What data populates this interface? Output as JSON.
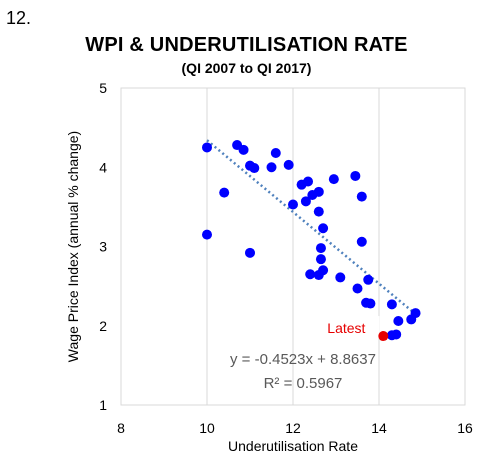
{
  "page": {
    "figure_number": "12."
  },
  "chart_data": {
    "type": "scatter",
    "title": "WPI & UNDERUTILISATION RATE",
    "subtitle": "(QI 2007 to QI 2017)",
    "xlabel": "Underutilisation Rate",
    "ylabel": "Wage Price Index (annual % change)",
    "xlim": [
      8,
      16
    ],
    "ylim": [
      1,
      5
    ],
    "xticks": [
      "8",
      "10",
      "12",
      "14",
      "16"
    ],
    "yticks": [
      "1",
      "2",
      "3",
      "4",
      "5"
    ],
    "grid": "vertical",
    "colors": {
      "points": "#0000ff",
      "latest": "#e60000",
      "trend": "#4f81bd",
      "grid": "#d9d9d9"
    },
    "points": [
      {
        "x": 10.0,
        "y": 4.25
      },
      {
        "x": 10.0,
        "y": 3.15
      },
      {
        "x": 10.4,
        "y": 3.68
      },
      {
        "x": 10.7,
        "y": 4.28
      },
      {
        "x": 10.85,
        "y": 4.22
      },
      {
        "x": 11.0,
        "y": 4.02
      },
      {
        "x": 11.1,
        "y": 3.99
      },
      {
        "x": 11.0,
        "y": 2.92
      },
      {
        "x": 11.5,
        "y": 4.0
      },
      {
        "x": 11.6,
        "y": 4.18
      },
      {
        "x": 11.9,
        "y": 4.03
      },
      {
        "x": 12.0,
        "y": 3.53
      },
      {
        "x": 12.2,
        "y": 3.78
      },
      {
        "x": 12.3,
        "y": 3.57
      },
      {
        "x": 12.35,
        "y": 3.82
      },
      {
        "x": 12.45,
        "y": 3.65
      },
      {
        "x": 12.6,
        "y": 3.69
      },
      {
        "x": 12.6,
        "y": 3.44
      },
      {
        "x": 12.7,
        "y": 3.23
      },
      {
        "x": 12.65,
        "y": 2.98
      },
      {
        "x": 12.65,
        "y": 2.84
      },
      {
        "x": 12.4,
        "y": 2.65
      },
      {
        "x": 12.6,
        "y": 2.64
      },
      {
        "x": 12.7,
        "y": 2.7
      },
      {
        "x": 12.95,
        "y": 3.85
      },
      {
        "x": 13.1,
        "y": 2.61
      },
      {
        "x": 13.45,
        "y": 3.89
      },
      {
        "x": 13.5,
        "y": 2.47
      },
      {
        "x": 13.6,
        "y": 3.63
      },
      {
        "x": 13.6,
        "y": 3.06
      },
      {
        "x": 13.75,
        "y": 2.58
      },
      {
        "x": 13.7,
        "y": 2.29
      },
      {
        "x": 13.8,
        "y": 2.28
      },
      {
        "x": 14.3,
        "y": 2.27
      },
      {
        "x": 14.45,
        "y": 2.06
      },
      {
        "x": 14.3,
        "y": 1.88
      },
      {
        "x": 14.4,
        "y": 1.89
      },
      {
        "x": 14.75,
        "y": 2.08
      },
      {
        "x": 14.85,
        "y": 2.16
      }
    ],
    "latest_point": {
      "x": 14.1,
      "y": 1.87,
      "label": "Latest"
    },
    "trendline": {
      "slope": -0.4523,
      "intercept": 8.8637,
      "x_range": [
        10,
        14.9
      ],
      "equation": "y = -0.4523x + 8.8637",
      "r_squared": "R² = 0.5967"
    }
  }
}
